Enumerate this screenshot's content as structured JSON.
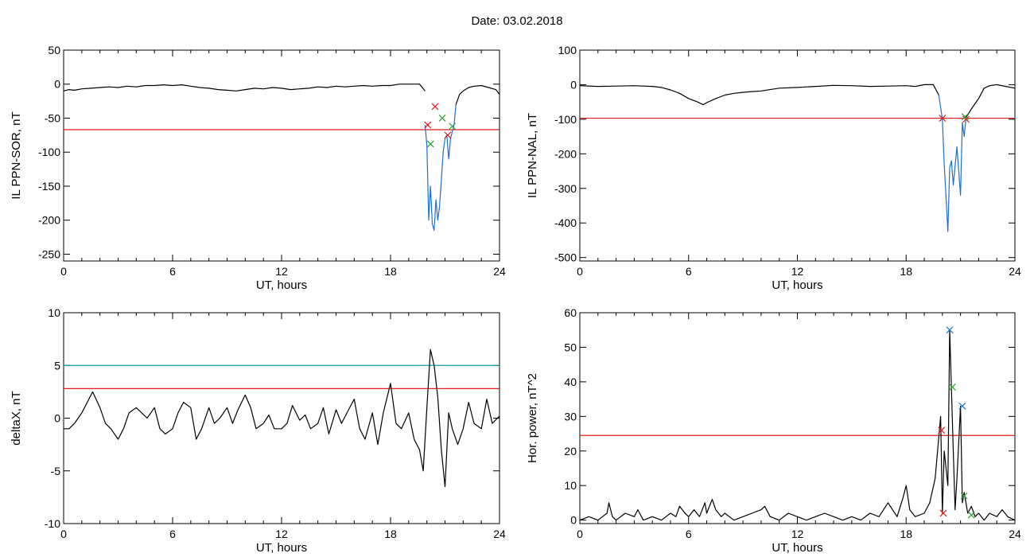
{
  "title": "Date:  03.02.2018",
  "chart_data": [
    {
      "id": "p1",
      "type": "line",
      "xlabel": "UT, hours",
      "ylabel": "IL PPN-SOR, nT",
      "xlim": [
        0,
        24
      ],
      "ylim": [
        -260,
        50
      ],
      "xticks": [
        0,
        6,
        12,
        18,
        24
      ],
      "yticks": [
        50,
        0,
        -50,
        -100,
        -150,
        -200,
        -250
      ],
      "hlines": [
        {
          "y": -67,
          "color": "#e41a1c"
        }
      ],
      "series": [
        {
          "color": "#000000",
          "x": [
            0,
            0.3,
            0.6,
            1,
            1.5,
            2,
            2.5,
            3,
            3.5,
            4,
            4.5,
            5,
            5.5,
            6,
            6.5,
            7,
            7.5,
            8,
            8.5,
            9,
            9.5,
            10,
            10.5,
            11,
            11.5,
            12,
            12.5,
            13,
            13.5,
            14,
            14.5,
            15,
            15.5,
            16,
            16.5,
            17,
            17.5,
            18,
            18.5,
            19,
            19.3,
            19.6,
            19.9
          ],
          "y": [
            -10,
            -8,
            -9,
            -7,
            -6,
            -5,
            -4,
            -5,
            -3,
            -4,
            -2,
            -2,
            -1,
            -2,
            -1,
            -3,
            -5,
            -6,
            -8,
            -9,
            -10,
            -8,
            -6,
            -7,
            -5,
            -6,
            -8,
            -7,
            -6,
            -4,
            -5,
            -3,
            -4,
            -3,
            -2,
            -3,
            -2,
            -2,
            0,
            0,
            0,
            0,
            -10
          ]
        },
        {
          "color": "#1f6fd1",
          "x": [
            19.9,
            20.0,
            20.1,
            20.2,
            20.3,
            20.4,
            20.5,
            20.6,
            20.7,
            20.8,
            20.9,
            21.0,
            21.1,
            21.2,
            21.3,
            21.4,
            21.5,
            21.6
          ],
          "y": [
            -60,
            -90,
            -200,
            -150,
            -205,
            -215,
            -170,
            -200,
            -180,
            -140,
            -100,
            -80,
            -75,
            -110,
            -80,
            -70,
            -60,
            -30
          ]
        },
        {
          "color": "#000000",
          "x": [
            21.6,
            21.8,
            22,
            22.3,
            22.6,
            23,
            23.4,
            23.8,
            24
          ],
          "y": [
            -30,
            -15,
            -10,
            -5,
            -3,
            -2,
            -5,
            -8,
            -15
          ]
        }
      ],
      "markers": [
        {
          "x": 20.05,
          "y": -60,
          "color": "#e41a1c"
        },
        {
          "x": 20.45,
          "y": -33,
          "color": "#e41a1c"
        },
        {
          "x": 21.15,
          "y": -75,
          "color": "#e41a1c"
        },
        {
          "x": 20.2,
          "y": -88,
          "color": "#2ca02c"
        },
        {
          "x": 20.85,
          "y": -50,
          "color": "#2ca02c"
        },
        {
          "x": 21.4,
          "y": -62,
          "color": "#2ca02c"
        }
      ]
    },
    {
      "id": "p2",
      "type": "line",
      "xlabel": "UT, hours",
      "ylabel": "IL PPN-NAL, nT",
      "xlim": [
        0,
        24
      ],
      "ylim": [
        -510,
        100
      ],
      "xticks": [
        0,
        6,
        12,
        18,
        24
      ],
      "yticks": [
        100,
        0,
        -100,
        -200,
        -300,
        -400,
        -500
      ],
      "hlines": [
        {
          "y": -97,
          "color": "#e41a1c"
        }
      ],
      "series": [
        {
          "color": "#000000",
          "x": [
            0,
            1,
            2,
            3,
            4,
            4.5,
            5,
            5.5,
            6,
            6.5,
            6.8,
            7,
            7.5,
            8,
            8.5,
            9,
            9.5,
            10,
            11,
            12,
            13,
            14,
            15,
            16,
            17,
            18,
            18.5,
            19,
            19.5,
            19.8
          ],
          "y": [
            -3,
            -5,
            -4,
            -3,
            -5,
            -8,
            -15,
            -25,
            -40,
            -50,
            -58,
            -52,
            -40,
            -30,
            -25,
            -22,
            -20,
            -18,
            -10,
            -8,
            -5,
            -2,
            -3,
            -5,
            -4,
            -3,
            -5,
            0,
            0,
            -30
          ]
        },
        {
          "color": "#1f6fd1",
          "x": [
            19.8,
            20,
            20.1,
            20.2,
            20.3,
            20.4,
            20.5,
            20.6,
            20.8,
            21,
            21.1,
            21.2,
            21.3
          ],
          "y": [
            -30,
            -100,
            -230,
            -325,
            -425,
            -240,
            -220,
            -290,
            -180,
            -320,
            -110,
            -150,
            -95
          ]
        },
        {
          "color": "#000000",
          "x": [
            21.3,
            21.6,
            22,
            22.3,
            22.6,
            23,
            23.5,
            24
          ],
          "y": [
            -95,
            -70,
            -40,
            -10,
            -3,
            0,
            -5,
            -10
          ]
        }
      ],
      "markers": [
        {
          "x": 20.0,
          "y": -97,
          "color": "#e41a1c"
        },
        {
          "x": 21.3,
          "y": -100,
          "color": "#e41a1c"
        },
        {
          "x": 21.25,
          "y": -93,
          "color": "#2ca02c"
        }
      ]
    },
    {
      "id": "p3",
      "type": "line",
      "xlabel": "UT, hours",
      "ylabel": "deltaX, nT",
      "xlim": [
        0,
        24
      ],
      "ylim": [
        -10,
        10
      ],
      "xticks": [
        0,
        6,
        12,
        18,
        24
      ],
      "yticks": [
        10,
        5,
        0,
        -5,
        -10
      ],
      "hlines": [
        {
          "y": 5.0,
          "color": "#1a9b9b"
        },
        {
          "y": 2.8,
          "color": "#e41a1c"
        }
      ],
      "series": [
        {
          "color": "#000000",
          "x": [
            0,
            0.3,
            0.6,
            1,
            1.3,
            1.6,
            2,
            2.3,
            2.6,
            3,
            3.3,
            3.6,
            4,
            4.3,
            4.6,
            5,
            5.3,
            5.6,
            6,
            6.3,
            6.6,
            7,
            7.3,
            7.6,
            8,
            8.3,
            8.6,
            9,
            9.3,
            9.6,
            10,
            10.3,
            10.6,
            11,
            11.3,
            11.6,
            12,
            12.3,
            12.6,
            13,
            13.3,
            13.6,
            14,
            14.3,
            14.6,
            15,
            15.3,
            15.6,
            16,
            16.3,
            16.6,
            17,
            17.3,
            17.6,
            18,
            18.3,
            18.6,
            19,
            19.3,
            19.6,
            19.8,
            20,
            20.2,
            20.4,
            20.6,
            20.8,
            21,
            21.2,
            21.4,
            21.7,
            22,
            22.3,
            22.6,
            23,
            23.3,
            23.6,
            24
          ],
          "y": [
            -1,
            -1,
            -0.5,
            0.5,
            1.5,
            2.5,
            1,
            -0.5,
            -1,
            -2,
            -1,
            0.5,
            1,
            0.5,
            0,
            1,
            -1,
            -1.5,
            -1,
            0.5,
            1.5,
            1,
            -2,
            -1,
            1,
            -0.5,
            0,
            1,
            -0.5,
            0.8,
            2.2,
            1,
            -1,
            -0.5,
            0.3,
            -1,
            -1,
            -0.5,
            1.2,
            -0.2,
            0.3,
            -1,
            -0.5,
            1,
            -1.5,
            0.8,
            -0.5,
            0.5,
            1.8,
            -1,
            -2,
            0.5,
            -2.5,
            0.5,
            3.3,
            -0.5,
            -1,
            0.5,
            -2,
            -3,
            -5,
            1,
            6.5,
            5,
            2,
            -3,
            -6.5,
            0.5,
            -1,
            -2.5,
            -1,
            1.5,
            -0.5,
            -1,
            1.8,
            -0.5,
            0.2
          ]
        }
      ],
      "markers": []
    },
    {
      "id": "p4",
      "type": "line",
      "xlabel": "UT, hours",
      "ylabel": "Hor. power, nT^2",
      "xlim": [
        0,
        24
      ],
      "ylim": [
        -1,
        60
      ],
      "xticks": [
        0,
        6,
        12,
        18,
        24
      ],
      "yticks": [
        60,
        50,
        40,
        30,
        20,
        10,
        0
      ],
      "hlines": [
        {
          "y": 24.5,
          "color": "#e41a1c"
        }
      ],
      "series": [
        {
          "color": "#000000",
          "x": [
            0,
            0.5,
            1,
            1.5,
            1.6,
            1.8,
            2,
            2.5,
            3,
            3.2,
            3.5,
            4,
            4.5,
            5,
            5.3,
            5.5,
            5.8,
            6,
            6.3,
            6.6,
            6.9,
            7,
            7.3,
            7.5,
            7.8,
            8,
            8.5,
            9,
            9.5,
            10,
            10.2,
            10.5,
            11,
            11.5,
            12,
            12.5,
            13,
            13.5,
            14,
            14.5,
            15,
            15.5,
            16,
            16.5,
            17,
            17.5,
            17.8,
            18,
            18.2,
            18.5,
            19,
            19.3,
            19.6,
            19.9,
            20,
            20.1,
            20.3,
            20.4,
            20.5,
            20.6,
            20.7,
            20.8,
            21,
            21.1,
            21.2,
            21.4,
            21.6,
            21.8,
            22,
            22.3,
            22.6,
            23,
            23.3,
            23.6,
            24
          ],
          "y": [
            0,
            1,
            0,
            2,
            5,
            1,
            0,
            2,
            1,
            3,
            0,
            1,
            0,
            2,
            1,
            4,
            2,
            1,
            3,
            1,
            5,
            2,
            6,
            3,
            1,
            2,
            0,
            1,
            2,
            3,
            4,
            1,
            0,
            2,
            1,
            0,
            1,
            2,
            1,
            0,
            1,
            0,
            2,
            1,
            5,
            1,
            6,
            10,
            3,
            1,
            2,
            5,
            12,
            30,
            2,
            20,
            10,
            55,
            38,
            20,
            3,
            12,
            33,
            5,
            8,
            2,
            4,
            1,
            2,
            0,
            2,
            1,
            3,
            1,
            0
          ]
        }
      ],
      "markers": [
        {
          "x": 19.95,
          "y": 26,
          "color": "#e41a1c"
        },
        {
          "x": 20.05,
          "y": 2,
          "color": "#e41a1c"
        },
        {
          "x": 20.4,
          "y": 55,
          "color": "#1f6fd1"
        },
        {
          "x": 21.1,
          "y": 33,
          "color": "#1f6fd1"
        },
        {
          "x": 20.55,
          "y": 38.5,
          "color": "#2ca02c"
        },
        {
          "x": 21.2,
          "y": 7,
          "color": "#2ca02c"
        },
        {
          "x": 21.6,
          "y": 1.5,
          "color": "#2ca02c"
        }
      ]
    }
  ]
}
